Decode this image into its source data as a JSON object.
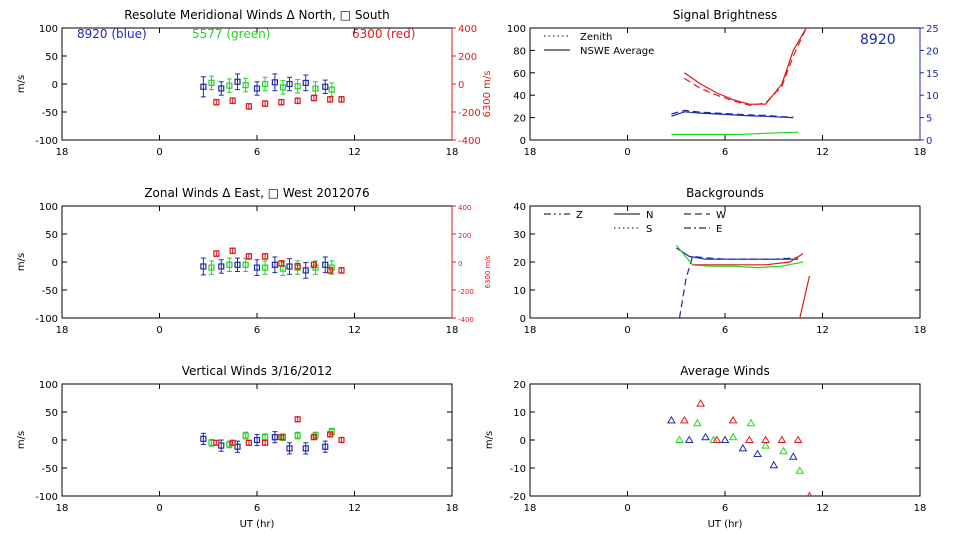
{
  "colors": {
    "blue": "#1c2bb0",
    "green": "#22d622",
    "red": "#e01a1a",
    "axis": "#000000"
  },
  "chart_data": [
    {
      "id": "meridional",
      "type": "scatter",
      "title": "Resolute Meridional Winds Δ North, □ South",
      "xlabel": "",
      "ylabel": "m/s",
      "xlim": [
        18,
        42
      ],
      "xticks": [
        18,
        24,
        30,
        36,
        42
      ],
      "xticklabels": [
        "18",
        "0",
        "6",
        "12",
        "18"
      ],
      "ylim": [
        -100,
        100
      ],
      "yticks": [
        -100,
        -50,
        0,
        50,
        100
      ],
      "right_axis": {
        "label": "6300 m/s",
        "color": "#e01a1a",
        "ylim": [
          -400,
          400
        ],
        "ticks": [
          -400,
          -200,
          0,
          200,
          400
        ]
      },
      "legend_labels": [
        {
          "text": "8920  (blue)",
          "color": "#1c2bb0"
        },
        {
          "text": "5577  (green)",
          "color": "#22d622"
        },
        {
          "text": "6300  (red)",
          "color": "#e01a1a"
        }
      ],
      "series": [
        {
          "name": "8920",
          "color": "#1c2bb0",
          "axis": "left",
          "x": [
            26.7,
            27.8,
            28.8,
            30.0,
            31.1,
            32.0,
            33.0,
            34.2
          ],
          "y": [
            -5,
            -8,
            4,
            -8,
            3,
            0,
            2,
            -5
          ],
          "err": [
            18,
            12,
            14,
            12,
            15,
            12,
            14,
            12
          ]
        },
        {
          "name": "5577",
          "color": "#22d622",
          "axis": "left",
          "x": [
            27.2,
            28.3,
            29.3,
            30.5,
            31.6,
            32.5,
            33.6,
            34.6
          ],
          "y": [
            2,
            -3,
            -2,
            0,
            -6,
            -4,
            -8,
            -10
          ],
          "err": [
            12,
            12,
            12,
            12,
            12,
            12,
            12,
            12
          ]
        },
        {
          "name": "6300",
          "color": "#e01a1a",
          "axis": "right",
          "x": [
            27.5,
            28.5,
            29.5,
            30.5,
            31.5,
            32.5,
            33.5,
            34.5,
            35.2
          ],
          "y": [
            -130,
            -120,
            -160,
            -140,
            -130,
            -120,
            -100,
            -110,
            -110
          ],
          "err": [
            20,
            20,
            20,
            20,
            20,
            20,
            20,
            20,
            20
          ]
        }
      ]
    },
    {
      "id": "zonal",
      "type": "scatter",
      "title": "Zonal Winds Δ East, □ West 2012076",
      "xlabel": "",
      "ylabel": "m/s",
      "xlim": [
        18,
        42
      ],
      "xticks": [
        18,
        24,
        30,
        36,
        42
      ],
      "xticklabels": [
        "18",
        "0",
        "6",
        "12",
        "18"
      ],
      "ylim": [
        -100,
        100
      ],
      "yticks": [
        -100,
        -50,
        0,
        50,
        100
      ],
      "right_axis": {
        "label": "6300 m/s",
        "color": "#e01a1a",
        "ylim": [
          -400,
          400
        ],
        "ticks": [
          -400,
          -200,
          0,
          200,
          400
        ]
      },
      "series": [
        {
          "name": "8920",
          "color": "#1c2bb0",
          "axis": "left",
          "x": [
            26.7,
            27.8,
            28.8,
            30.0,
            31.1,
            32.0,
            33.0,
            34.2
          ],
          "y": [
            -8,
            -8,
            -5,
            -10,
            -5,
            -8,
            -15,
            -5
          ],
          "err": [
            15,
            12,
            12,
            14,
            14,
            14,
            14,
            14
          ]
        },
        {
          "name": "5577",
          "color": "#22d622",
          "axis": "left",
          "x": [
            27.2,
            28.3,
            29.3,
            30.5,
            31.6,
            32.5,
            33.6,
            34.6
          ],
          "y": [
            -10,
            -5,
            -5,
            -10,
            -12,
            -10,
            -10,
            -10
          ],
          "err": [
            12,
            12,
            12,
            12,
            12,
            12,
            12,
            12
          ]
        },
        {
          "name": "6300",
          "color": "#e01a1a",
          "axis": "right",
          "x": [
            27.5,
            28.5,
            29.5,
            30.5,
            31.5,
            32.5,
            33.5,
            34.5,
            35.2
          ],
          "y": [
            60,
            80,
            40,
            40,
            -10,
            -30,
            -20,
            -60,
            -60
          ],
          "err": [
            20,
            20,
            20,
            20,
            20,
            20,
            20,
            20,
            20
          ]
        }
      ]
    },
    {
      "id": "vertical",
      "type": "scatter",
      "title": "Vertical Winds 3/16/2012",
      "xlabel": "UT (hr)",
      "ylabel": "m/s",
      "xlim": [
        18,
        42
      ],
      "xticks": [
        18,
        24,
        30,
        36,
        42
      ],
      "xticklabels": [
        "18",
        "0",
        "6",
        "12",
        "18"
      ],
      "ylim": [
        -100,
        100
      ],
      "yticks": [
        -100,
        -50,
        0,
        50,
        100
      ],
      "series": [
        {
          "name": "8920",
          "color": "#1c2bb0",
          "axis": "left",
          "x": [
            26.7,
            27.8,
            28.8,
            30.0,
            31.1,
            32.0,
            33.0,
            34.2
          ],
          "y": [
            2,
            -10,
            -12,
            0,
            5,
            -15,
            -15,
            -12
          ],
          "err": [
            10,
            10,
            10,
            10,
            10,
            10,
            10,
            10
          ]
        },
        {
          "name": "5577",
          "color": "#22d622",
          "axis": "left",
          "x": [
            27.2,
            28.3,
            29.3,
            30.5,
            31.6,
            32.5,
            33.6,
            34.6
          ],
          "y": [
            -5,
            -8,
            8,
            5,
            5,
            8,
            8,
            15
          ],
          "err": [
            6,
            6,
            6,
            6,
            6,
            6,
            6,
            6
          ]
        },
        {
          "name": "6300",
          "color": "#e01a1a",
          "axis": "left",
          "x": [
            27.5,
            28.5,
            29.5,
            30.5,
            31.5,
            32.5,
            33.5,
            34.5,
            35.2
          ],
          "y": [
            -5,
            -5,
            -5,
            -5,
            5,
            37,
            5,
            10,
            0
          ],
          "err": [
            4,
            4,
            4,
            4,
            4,
            4,
            4,
            4,
            4
          ]
        }
      ]
    },
    {
      "id": "brightness",
      "type": "line",
      "title": "Signal Brightness",
      "xlabel": "",
      "ylabel": "",
      "xlim": [
        18,
        42
      ],
      "xticks": [
        18,
        24,
        30,
        36,
        42
      ],
      "xticklabels": [
        "18",
        "0",
        "6",
        "12",
        "18"
      ],
      "ylim": [
        0,
        100
      ],
      "yticks": [
        0,
        20,
        40,
        60,
        80,
        100
      ],
      "right_axis": {
        "label": "",
        "color": "#1c2bb0",
        "ylim": [
          0,
          25
        ],
        "ticks": [
          0,
          5,
          10,
          15,
          20,
          25
        ]
      },
      "legend": [
        {
          "style": "dotted",
          "label": "Zenith"
        },
        {
          "style": "solid",
          "label": "NSWE Average"
        }
      ],
      "annotation": "8920",
      "series": [
        {
          "name": "6300 NSWE Average",
          "color": "#e01a1a",
          "style": "solid",
          "axis": "left",
          "x": [
            27.5,
            28.5,
            29.5,
            30.5,
            31.5,
            32.5,
            33.5,
            34.2,
            35.0
          ],
          "y": [
            60,
            50,
            42,
            36,
            32,
            32,
            50,
            80,
            100
          ]
        },
        {
          "name": "6300 Zenith",
          "color": "#e01a1a",
          "style": "dashed",
          "axis": "left",
          "x": [
            27.5,
            28.5,
            29.5,
            30.5,
            31.5,
            32.5,
            33.5,
            34.2,
            35.0
          ],
          "y": [
            55,
            46,
            40,
            35,
            31,
            33,
            48,
            75,
            100
          ]
        },
        {
          "name": "8920 NSWE Average",
          "color": "#1c2bb0",
          "style": "solid",
          "axis": "right",
          "x": [
            26.7,
            27.5,
            28.5,
            29.5,
            30.5,
            31.5,
            32.5,
            33.5,
            34.2
          ],
          "y": [
            5.3,
            6.3,
            6.0,
            5.8,
            5.6,
            5.4,
            5.3,
            5.1,
            5.0
          ]
        },
        {
          "name": "8920 Zenith",
          "color": "#1c2bb0",
          "style": "dashed",
          "axis": "right",
          "x": [
            26.7,
            27.5,
            28.5,
            29.5,
            30.5,
            31.5,
            32.5,
            33.5,
            34.2
          ],
          "y": [
            5.8,
            6.6,
            6.2,
            6.0,
            5.8,
            5.6,
            5.5,
            5.2,
            5.1
          ]
        },
        {
          "name": "5577 NSWE Average",
          "color": "#22d622",
          "style": "solid",
          "axis": "left",
          "x": [
            26.7,
            28.0,
            29.5,
            31.0,
            32.5,
            34.5
          ],
          "y": [
            5,
            5,
            5,
            5,
            6,
            7
          ]
        }
      ]
    },
    {
      "id": "backgrounds",
      "type": "line",
      "title": "Backgrounds",
      "xlabel": "",
      "ylabel": "",
      "xlim": [
        18,
        42
      ],
      "xticks": [
        18,
        24,
        30,
        36,
        42
      ],
      "xticklabels": [
        "18",
        "0",
        "6",
        "12",
        "18"
      ],
      "ylim": [
        0,
        40
      ],
      "yticks": [
        0,
        10,
        20,
        30,
        40
      ],
      "legend": [
        {
          "style": "dashdotdot",
          "label": "Z"
        },
        {
          "style": "solid",
          "label": "N"
        },
        {
          "style": "dashed",
          "label": "W"
        },
        {
          "style": "dotted",
          "label": "S"
        },
        {
          "style": "dashdot",
          "label": "E"
        }
      ],
      "series": [
        {
          "name": "8920 N",
          "color": "#1c2bb0",
          "style": "solid",
          "x": [
            27.0,
            27.8,
            28.8,
            30.0,
            31.5,
            33.0,
            34.5
          ],
          "y": [
            25,
            22,
            21,
            21,
            21,
            21,
            21
          ]
        },
        {
          "name": "8920 Z",
          "color": "#1c2bb0",
          "style": "dashed",
          "x": [
            27.2,
            27.6,
            28.0,
            28.8,
            30.0,
            31.5,
            33.0,
            34.5
          ],
          "y": [
            0,
            14,
            22,
            21.5,
            21,
            21,
            21,
            21.5
          ]
        },
        {
          "name": "5577 N",
          "color": "#22d622",
          "style": "solid",
          "x": [
            27.0,
            28.0,
            29.0,
            30.5,
            32.0,
            33.5,
            34.8
          ],
          "y": [
            26,
            19,
            18.5,
            18.5,
            18,
            18.5,
            20
          ]
        },
        {
          "name": "6300 N",
          "color": "#e01a1a",
          "style": "solid",
          "x": [
            28.0,
            29.5,
            31.0,
            32.5,
            34.0,
            34.8
          ],
          "y": [
            19,
            19,
            19,
            19,
            20,
            23
          ]
        },
        {
          "name": "6300 Z",
          "color": "#e01a1a",
          "style": "solid",
          "x": [
            34.6,
            35.2
          ],
          "y": [
            0,
            15
          ]
        }
      ]
    },
    {
      "id": "average",
      "type": "scatter",
      "title": "Average Winds",
      "xlabel": "UT (hr)",
      "ylabel": "m/s",
      "xlim": [
        18,
        42
      ],
      "xticks": [
        18,
        24,
        30,
        36,
        42
      ],
      "xticklabels": [
        "18",
        "0",
        "6",
        "12",
        "18"
      ],
      "ylim": [
        -20,
        20
      ],
      "yticks": [
        -20,
        -10,
        0,
        10,
        20
      ],
      "marker": "triangle",
      "series": [
        {
          "name": "8920",
          "color": "#1c2bb0",
          "x": [
            26.7,
            27.8,
            28.8,
            30.0,
            31.1,
            32.0,
            33.0,
            34.2
          ],
          "y": [
            7,
            0,
            1,
            0,
            -3,
            -5,
            -9,
            -6
          ]
        },
        {
          "name": "5577",
          "color": "#22d622",
          "x": [
            27.2,
            28.3,
            29.3,
            30.5,
            31.6,
            32.5,
            33.6,
            34.6
          ],
          "y": [
            0,
            6,
            0,
            1,
            6,
            -2,
            -4,
            -11
          ]
        },
        {
          "name": "6300",
          "color": "#e01a1a",
          "x": [
            27.5,
            28.5,
            29.5,
            30.5,
            31.5,
            32.5,
            33.5,
            34.5,
            35.2
          ],
          "y": [
            7,
            13,
            0,
            7,
            0,
            0,
            0,
            0,
            -20
          ]
        }
      ]
    }
  ]
}
